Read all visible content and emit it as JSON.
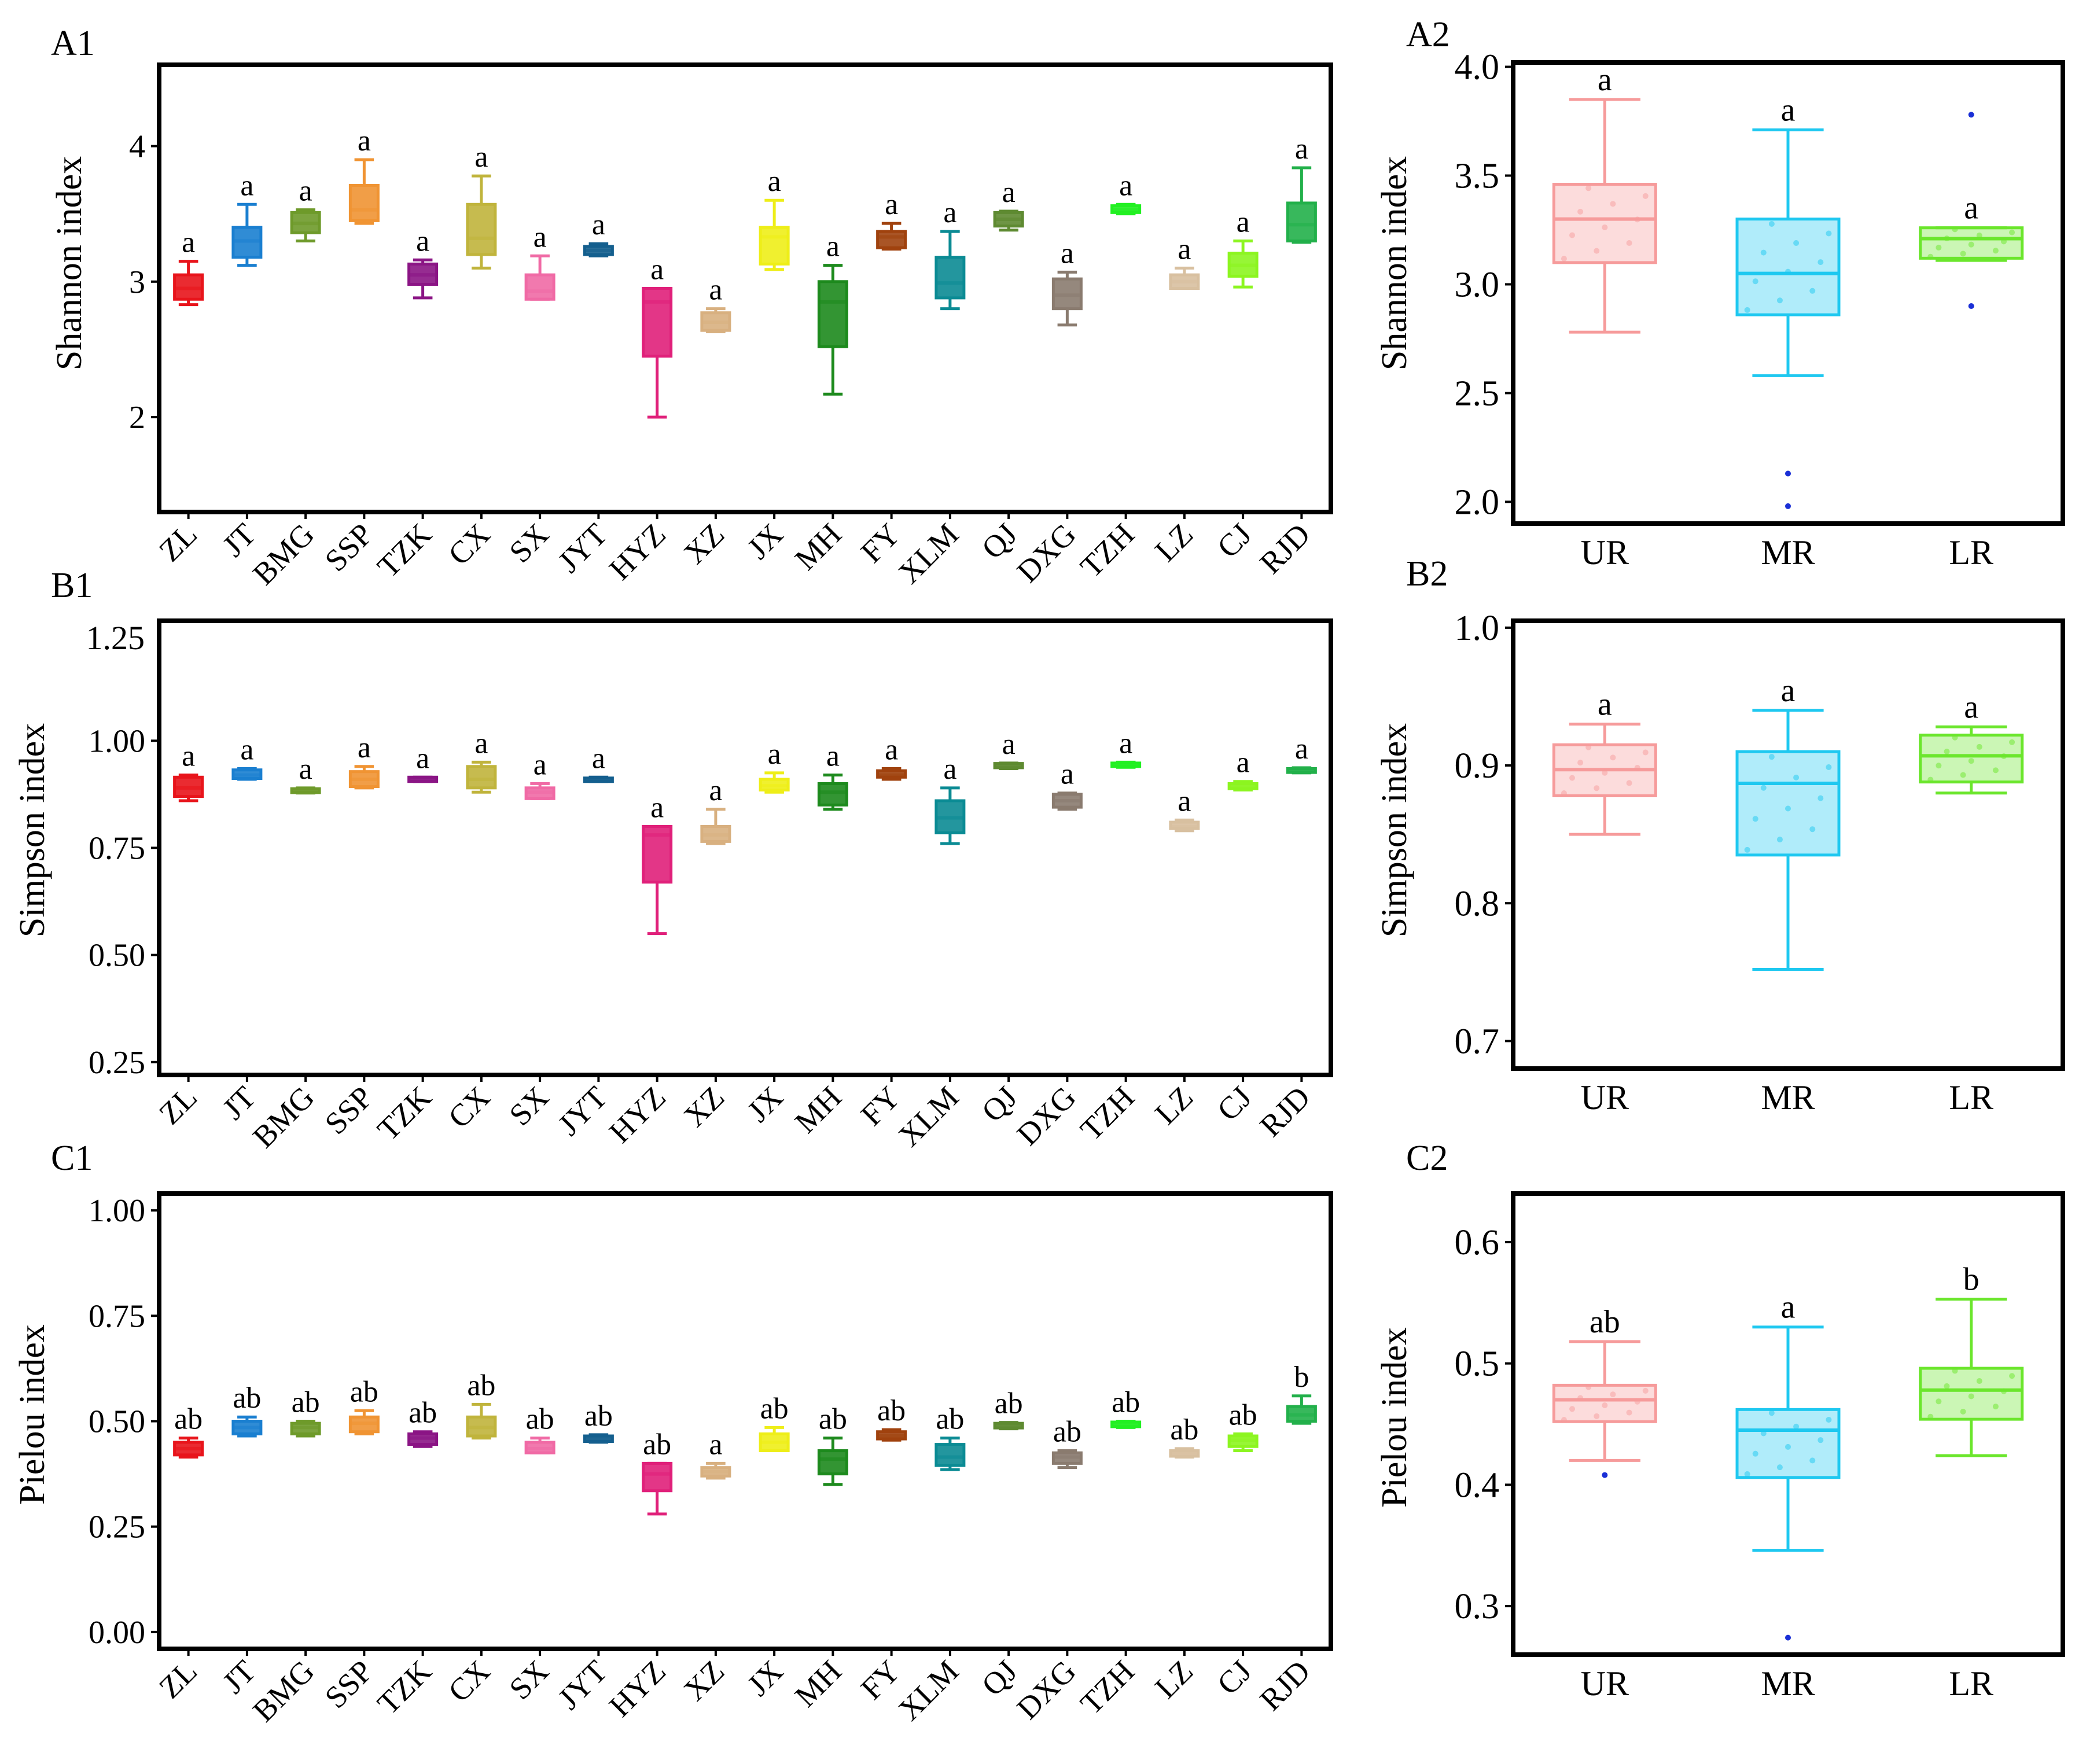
{
  "chart_data": [
    {
      "panel": "A1",
      "type": "box",
      "ylabel": "Shannon index",
      "ylim": [
        1.3,
        4.6
      ],
      "yticks": [
        2,
        3,
        4
      ],
      "ytick_labels": [
        "2",
        "3",
        "4"
      ],
      "categories": [
        "ZL",
        "JT",
        "BMG",
        "SSP",
        "TZK",
        "CX",
        "SX",
        "JYT",
        "HYZ",
        "XZ",
        "JX",
        "MH",
        "FY",
        "XLM",
        "QJ",
        "DXG",
        "TZH",
        "LZ",
        "CJ",
        "RJD"
      ],
      "colors": [
        "#e8141b",
        "#1a7fd0",
        "#6e9a2a",
        "#f09433",
        "#8b1585",
        "#c0b43c",
        "#f06aa5",
        "#145f8e",
        "#e0207a",
        "#d8b080",
        "#eeee18",
        "#1d8a1d",
        "#a0420e",
        "#0b8b94",
        "#5e8a31",
        "#8a7b6f",
        "#22f022",
        "#d8c0a0",
        "#8cf520",
        "#22b04a"
      ],
      "boxes": [
        {
          "min": 2.83,
          "q1": 2.87,
          "median": 2.95,
          "q3": 3.05,
          "max": 3.15
        },
        {
          "min": 3.12,
          "q1": 3.18,
          "median": 3.3,
          "q3": 3.4,
          "max": 3.57
        },
        {
          "min": 3.3,
          "q1": 3.36,
          "median": 3.43,
          "q3": 3.51,
          "max": 3.53
        },
        {
          "min": 3.43,
          "q1": 3.45,
          "median": 3.53,
          "q3": 3.71,
          "max": 3.9
        },
        {
          "min": 2.88,
          "q1": 2.98,
          "median": 3.05,
          "q3": 3.13,
          "max": 3.16
        },
        {
          "min": 3.1,
          "q1": 3.2,
          "median": 3.32,
          "q3": 3.57,
          "max": 3.78
        },
        {
          "min": 2.87,
          "q1": 2.87,
          "median": 2.93,
          "q3": 3.05,
          "max": 3.19
        },
        {
          "min": 3.19,
          "q1": 3.2,
          "median": 3.23,
          "q3": 3.26,
          "max": 3.28
        },
        {
          "min": 2.0,
          "q1": 2.45,
          "median": 2.85,
          "q3": 2.95,
          "max": 2.95
        },
        {
          "min": 2.63,
          "q1": 2.64,
          "median": 2.7,
          "q3": 2.77,
          "max": 2.8
        },
        {
          "min": 3.09,
          "q1": 3.13,
          "median": 3.33,
          "q3": 3.4,
          "max": 3.6
        },
        {
          "min": 2.17,
          "q1": 2.52,
          "median": 2.85,
          "q3": 3.0,
          "max": 3.12
        },
        {
          "min": 3.24,
          "q1": 3.25,
          "median": 3.33,
          "q3": 3.37,
          "max": 3.43
        },
        {
          "min": 2.8,
          "q1": 2.88,
          "median": 2.99,
          "q3": 3.18,
          "max": 3.37
        },
        {
          "min": 3.38,
          "q1": 3.41,
          "median": 3.46,
          "q3": 3.51,
          "max": 3.52
        },
        {
          "min": 2.68,
          "q1": 2.8,
          "median": 2.9,
          "q3": 3.02,
          "max": 3.07
        },
        {
          "min": 3.5,
          "q1": 3.51,
          "median": 3.53,
          "q3": 3.56,
          "max": 3.57
        },
        {
          "min": 2.95,
          "q1": 2.95,
          "median": 3.0,
          "q3": 3.05,
          "max": 3.1
        },
        {
          "min": 2.96,
          "q1": 3.04,
          "median": 3.12,
          "q3": 3.21,
          "max": 3.3
        },
        {
          "min": 3.29,
          "q1": 3.3,
          "median": 3.42,
          "q3": 3.58,
          "max": 3.84
        }
      ],
      "letters": [
        "a",
        "a",
        "a",
        "a",
        "a",
        "a",
        "a",
        "a",
        "a",
        "a",
        "a",
        "a",
        "a",
        "a",
        "a",
        "a",
        "a",
        "a",
        "a",
        "a"
      ]
    },
    {
      "panel": "A2",
      "type": "box",
      "ylabel": "Shannon index",
      "ylim": [
        1.9,
        4.02
      ],
      "yticks": [
        2.0,
        2.5,
        3.0,
        3.5,
        4.0
      ],
      "ytick_labels": [
        "2.0",
        "2.5",
        "3.0",
        "3.5",
        "4.0"
      ],
      "categories": [
        "UR",
        "MR",
        "LR"
      ],
      "colors": [
        "#f69b9b",
        "#1ec8f0",
        "#6be62c"
      ],
      "boxes": [
        {
          "min": 2.78,
          "q1": 3.1,
          "median": 3.3,
          "q3": 3.46,
          "max": 3.85
        },
        {
          "min": 2.58,
          "q1": 2.86,
          "median": 3.05,
          "q3": 3.3,
          "max": 3.71
        },
        {
          "min": 3.11,
          "q1": 3.12,
          "median": 3.21,
          "q3": 3.26,
          "max": 3.26
        }
      ],
      "outliers": [
        {
          "group": 1,
          "y": 2.13
        },
        {
          "group": 1,
          "y": 1.98
        },
        {
          "group": 2,
          "y": 3.78
        },
        {
          "group": 2,
          "y": 2.9
        }
      ],
      "letters": [
        "a",
        "a",
        "a"
      ]
    },
    {
      "panel": "B1",
      "type": "box",
      "ylabel": "Simpson index",
      "ylim": [
        0.22,
        1.28
      ],
      "yticks": [
        0.25,
        0.5,
        0.75,
        1.0
      ],
      "ytick_labels": [
        "0.25",
        "0.50",
        "0.75",
        "1.00"
      ],
      "extra_tick_labels": [
        "1.25"
      ],
      "categories": [
        "ZL",
        "JT",
        "BMG",
        "SSP",
        "TZK",
        "CX",
        "SX",
        "JYT",
        "HYZ",
        "XZ",
        "JX",
        "MH",
        "FY",
        "XLM",
        "QJ",
        "DXG",
        "TZH",
        "LZ",
        "CJ",
        "RJD"
      ],
      "boxes": [
        {
          "min": 0.86,
          "q1": 0.87,
          "median": 0.89,
          "q3": 0.915,
          "max": 0.92
        },
        {
          "min": 0.91,
          "q1": 0.912,
          "median": 0.92,
          "q3": 0.932,
          "max": 0.935
        },
        {
          "min": 0.878,
          "q1": 0.879,
          "median": 0.884,
          "q3": 0.888,
          "max": 0.89
        },
        {
          "min": 0.89,
          "q1": 0.893,
          "median": 0.91,
          "q3": 0.928,
          "max": 0.94
        },
        {
          "min": 0.905,
          "q1": 0.905,
          "median": 0.91,
          "q3": 0.915,
          "max": 0.915
        },
        {
          "min": 0.88,
          "q1": 0.89,
          "median": 0.91,
          "q3": 0.94,
          "max": 0.95
        },
        {
          "min": 0.865,
          "q1": 0.865,
          "median": 0.88,
          "q3": 0.89,
          "max": 0.9
        },
        {
          "min": 0.905,
          "q1": 0.906,
          "median": 0.91,
          "q3": 0.913,
          "max": 0.915
        },
        {
          "min": 0.55,
          "q1": 0.67,
          "median": 0.78,
          "q3": 0.8,
          "max": 0.8
        },
        {
          "min": 0.76,
          "q1": 0.765,
          "median": 0.78,
          "q3": 0.8,
          "max": 0.84
        },
        {
          "min": 0.88,
          "q1": 0.885,
          "median": 0.895,
          "q3": 0.91,
          "max": 0.925
        },
        {
          "min": 0.84,
          "q1": 0.85,
          "median": 0.88,
          "q3": 0.9,
          "max": 0.92
        },
        {
          "min": 0.91,
          "q1": 0.915,
          "median": 0.92,
          "q3": 0.93,
          "max": 0.935
        },
        {
          "min": 0.76,
          "q1": 0.785,
          "median": 0.82,
          "q3": 0.86,
          "max": 0.89
        },
        {
          "min": 0.935,
          "q1": 0.937,
          "median": 0.943,
          "q3": 0.947,
          "max": 0.948
        },
        {
          "min": 0.84,
          "q1": 0.845,
          "median": 0.86,
          "q3": 0.875,
          "max": 0.878
        },
        {
          "min": 0.938,
          "q1": 0.94,
          "median": 0.945,
          "q3": 0.948,
          "max": 0.95
        },
        {
          "min": 0.79,
          "q1": 0.795,
          "median": 0.8,
          "q3": 0.81,
          "max": 0.815
        },
        {
          "min": 0.885,
          "q1": 0.888,
          "median": 0.895,
          "q3": 0.9,
          "max": 0.905
        },
        {
          "min": 0.925,
          "q1": 0.926,
          "median": 0.93,
          "q3": 0.935,
          "max": 0.937
        }
      ],
      "letters": [
        "a",
        "a",
        "a",
        "a",
        "a",
        "a",
        "a",
        "a",
        "a",
        "a",
        "a",
        "a",
        "a",
        "a",
        "a",
        "a",
        "a",
        "a",
        "a",
        "a"
      ]
    },
    {
      "panel": "B2",
      "type": "box",
      "ylabel": "Simpson index",
      "ylim": [
        0.68,
        1.005
      ],
      "yticks": [
        0.7,
        0.8,
        0.9,
        1.0
      ],
      "ytick_labels": [
        "0.7",
        "0.8",
        "0.9",
        "1.0"
      ],
      "categories": [
        "UR",
        "MR",
        "LR"
      ],
      "boxes": [
        {
          "min": 0.85,
          "q1": 0.878,
          "median": 0.897,
          "q3": 0.915,
          "max": 0.93
        },
        {
          "min": 0.752,
          "q1": 0.835,
          "median": 0.887,
          "q3": 0.91,
          "max": 0.94
        },
        {
          "min": 0.88,
          "q1": 0.888,
          "median": 0.907,
          "q3": 0.922,
          "max": 0.928
        }
      ],
      "letters": [
        "a",
        "a",
        "a"
      ]
    },
    {
      "panel": "C1",
      "type": "box",
      "ylabel": "Pielou index",
      "ylim": [
        -0.04,
        1.04
      ],
      "yticks": [
        0.0,
        0.25,
        0.5,
        0.75,
        1.0
      ],
      "ytick_labels": [
        "0.00",
        "0.25",
        "0.50",
        "0.75",
        "1.00"
      ],
      "categories": [
        "ZL",
        "JT",
        "BMG",
        "SSP",
        "TZK",
        "CX",
        "SX",
        "JYT",
        "HYZ",
        "XZ",
        "JX",
        "MH",
        "FY",
        "XLM",
        "QJ",
        "DXG",
        "TZH",
        "LZ",
        "CJ",
        "RJD"
      ],
      "boxes": [
        {
          "min": 0.415,
          "q1": 0.42,
          "median": 0.435,
          "q3": 0.45,
          "max": 0.46
        },
        {
          "min": 0.465,
          "q1": 0.47,
          "median": 0.485,
          "q3": 0.5,
          "max": 0.51
        },
        {
          "min": 0.465,
          "q1": 0.47,
          "median": 0.485,
          "q3": 0.495,
          "max": 0.5
        },
        {
          "min": 0.47,
          "q1": 0.475,
          "median": 0.495,
          "q3": 0.51,
          "max": 0.525
        },
        {
          "min": 0.44,
          "q1": 0.445,
          "median": 0.46,
          "q3": 0.47,
          "max": 0.475
        },
        {
          "min": 0.46,
          "q1": 0.465,
          "median": 0.485,
          "q3": 0.51,
          "max": 0.54
        },
        {
          "min": 0.425,
          "q1": 0.425,
          "median": 0.435,
          "q3": 0.45,
          "max": 0.46
        },
        {
          "min": 0.45,
          "q1": 0.452,
          "median": 0.458,
          "q3": 0.465,
          "max": 0.468
        },
        {
          "min": 0.28,
          "q1": 0.335,
          "median": 0.375,
          "q3": 0.4,
          "max": 0.4
        },
        {
          "min": 0.365,
          "q1": 0.37,
          "median": 0.38,
          "q3": 0.39,
          "max": 0.4
        },
        {
          "min": 0.43,
          "q1": 0.43,
          "median": 0.45,
          "q3": 0.47,
          "max": 0.485
        },
        {
          "min": 0.35,
          "q1": 0.375,
          "median": 0.41,
          "q3": 0.43,
          "max": 0.46
        },
        {
          "min": 0.455,
          "q1": 0.458,
          "median": 0.465,
          "q3": 0.475,
          "max": 0.48
        },
        {
          "min": 0.385,
          "q1": 0.395,
          "median": 0.415,
          "q3": 0.445,
          "max": 0.46
        },
        {
          "min": 0.482,
          "q1": 0.484,
          "median": 0.49,
          "q3": 0.495,
          "max": 0.497
        },
        {
          "min": 0.39,
          "q1": 0.4,
          "median": 0.415,
          "q3": 0.425,
          "max": 0.43
        },
        {
          "min": 0.485,
          "q1": 0.487,
          "median": 0.493,
          "q3": 0.498,
          "max": 0.5
        },
        {
          "min": 0.415,
          "q1": 0.417,
          "median": 0.425,
          "q3": 0.43,
          "max": 0.435
        },
        {
          "min": 0.43,
          "q1": 0.44,
          "median": 0.455,
          "q3": 0.465,
          "max": 0.47
        },
        {
          "min": 0.495,
          "q1": 0.5,
          "median": 0.515,
          "q3": 0.535,
          "max": 0.56
        }
      ],
      "letters": [
        "ab",
        "ab",
        "ab",
        "ab",
        "ab",
        "ab",
        "ab",
        "ab",
        "ab",
        "a",
        "ab",
        "ab",
        "ab",
        "ab",
        "ab",
        "ab",
        "ab",
        "ab",
        "ab",
        "b"
      ]
    },
    {
      "panel": "C2",
      "type": "box",
      "ylabel": "Pielou index",
      "ylim": [
        0.26,
        0.64
      ],
      "yticks": [
        0.3,
        0.4,
        0.5,
        0.6
      ],
      "ytick_labels": [
        "0.3",
        "0.4",
        "0.5",
        "0.6"
      ],
      "categories": [
        "UR",
        "MR",
        "LR"
      ],
      "boxes": [
        {
          "min": 0.42,
          "q1": 0.452,
          "median": 0.47,
          "q3": 0.482,
          "max": 0.518
        },
        {
          "min": 0.346,
          "q1": 0.406,
          "median": 0.445,
          "q3": 0.462,
          "max": 0.53
        },
        {
          "min": 0.424,
          "q1": 0.454,
          "median": 0.478,
          "q3": 0.496,
          "max": 0.553
        }
      ],
      "outliers": [
        {
          "group": 0,
          "y": 0.408
        },
        {
          "group": 1,
          "y": 0.274
        }
      ],
      "letters": [
        "ab",
        "a",
        "b"
      ]
    }
  ]
}
